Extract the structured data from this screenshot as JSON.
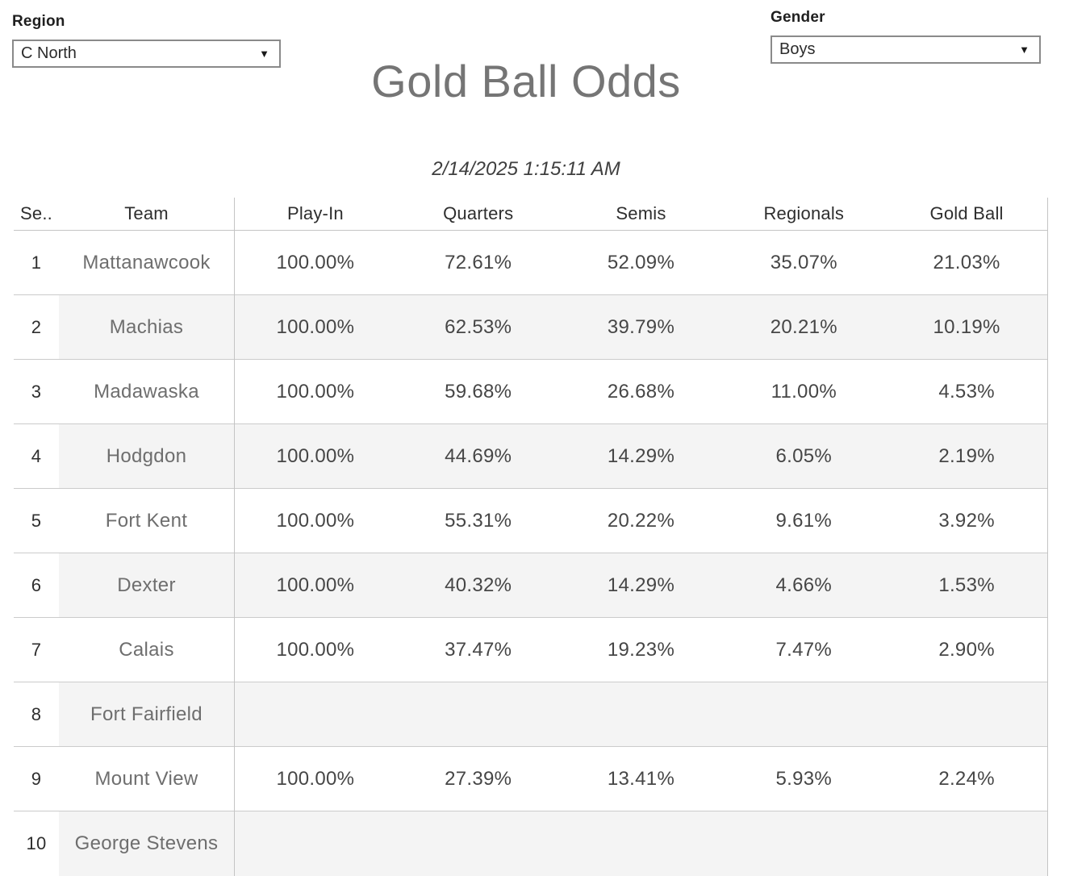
{
  "filters": {
    "region": {
      "label": "Region",
      "value": "C North"
    },
    "gender": {
      "label": "Gender",
      "value": "Boys"
    }
  },
  "page": {
    "title": "Gold Ball Odds",
    "timestamp": "2/14/2025 1:15:11 AM"
  },
  "table": {
    "columns": [
      "Se..",
      "Team",
      "Play-In",
      "Quarters",
      "Semis",
      "Regionals",
      "Gold Ball"
    ],
    "rows": [
      [
        "1",
        "Mattanawcook",
        "100.00%",
        "72.61%",
        "52.09%",
        "35.07%",
        "21.03%"
      ],
      [
        "2",
        "Machias",
        "100.00%",
        "62.53%",
        "39.79%",
        "20.21%",
        "10.19%"
      ],
      [
        "3",
        "Madawaska",
        "100.00%",
        "59.68%",
        "26.68%",
        "11.00%",
        "4.53%"
      ],
      [
        "4",
        "Hodgdon",
        "100.00%",
        "44.69%",
        "14.29%",
        "6.05%",
        "2.19%"
      ],
      [
        "5",
        "Fort Kent",
        "100.00%",
        "55.31%",
        "20.22%",
        "9.61%",
        "3.92%"
      ],
      [
        "6",
        "Dexter",
        "100.00%",
        "40.32%",
        "14.29%",
        "4.66%",
        "1.53%"
      ],
      [
        "7",
        "Calais",
        "100.00%",
        "37.47%",
        "19.23%",
        "7.47%",
        "2.90%"
      ],
      [
        "8",
        "Fort Fairfield",
        "",
        "",
        "",
        "",
        ""
      ],
      [
        "9",
        "Mount View",
        "100.00%",
        "27.39%",
        "13.41%",
        "5.93%",
        "2.24%"
      ],
      [
        "10",
        "George Stevens",
        "",
        "",
        "",
        "",
        ""
      ]
    ]
  },
  "icons": {
    "dropdown_arrow": "▼"
  },
  "colors": {
    "title_text": "#757575",
    "stripe": "#f4f4f4",
    "grid_line": "#cbcbcb",
    "header_text": "#2e2e2e",
    "team_text": "#6e6e6e",
    "value_text": "#464646",
    "dropdown_border": "#8a8a8a"
  }
}
